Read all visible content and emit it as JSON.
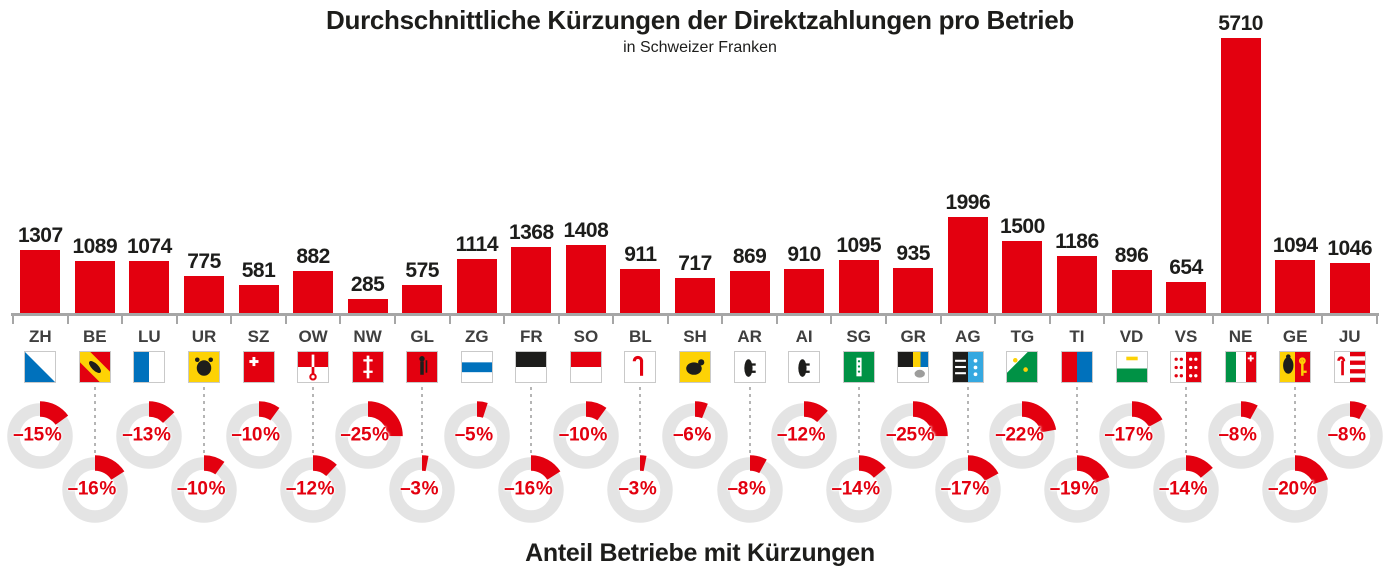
{
  "title": "Durchschnittliche Kürzungen der Direktzahlungen pro Betrieb",
  "subtitle": "in Schweizer Franken",
  "footer": "Anteil Betriebe mit Kürzungen",
  "colors": {
    "bar": "#e3000f",
    "donut_ring": "#e4e4e4",
    "donut_arc": "#e3000f",
    "pct_text": "#e3000f",
    "axis": "#a6a6a6",
    "value_text": "#1d1d1b",
    "canton_text": "#3f3f3f",
    "dash": "#b5b5b5"
  },
  "chart_data": {
    "type": "bar",
    "title": "Durchschnittliche Kürzungen der Direktzahlungen pro Betrieb",
    "subtitle": "in Schweizer Franken",
    "donut_caption": "Anteil Betriebe mit Kürzungen",
    "categories": [
      "ZH",
      "BE",
      "LU",
      "UR",
      "SZ",
      "OW",
      "NW",
      "GL",
      "ZG",
      "FR",
      "SO",
      "BL",
      "SH",
      "AR",
      "AI",
      "SG",
      "GR",
      "AG",
      "TG",
      "TI",
      "VD",
      "VS",
      "NE",
      "GE",
      "JU"
    ],
    "series": [
      {
        "name": "Durchschnittliche Kürzung pro Betrieb (CHF)",
        "type": "bar",
        "values": [
          1307,
          1089,
          1074,
          775,
          581,
          882,
          285,
          575,
          1114,
          1368,
          1408,
          911,
          717,
          869,
          910,
          1095,
          935,
          1996,
          1500,
          1186,
          896,
          654,
          5710,
          1094,
          1046
        ]
      },
      {
        "name": "Anteil Betriebe mit Kürzungen (%)",
        "type": "donut",
        "values": [
          -15,
          -16,
          -13,
          -10,
          -10,
          -12,
          -25,
          -3,
          -5,
          -16,
          -10,
          -3,
          -6,
          -8,
          -12,
          -14,
          -25,
          -17,
          -22,
          -19,
          -17,
          -14,
          -8,
          -20,
          -8
        ]
      }
    ],
    "ylim": [
      0,
      5710
    ],
    "value_labels": true,
    "grid": false,
    "legend": "none"
  },
  "cantons": [
    {
      "code": "ZH",
      "value": 1307,
      "pct": -15,
      "pct_label": "–15 %",
      "flag": {
        "pattern": "diagonal",
        "colors": [
          "#ffffff",
          "#0071bc"
        ]
      }
    },
    {
      "code": "BE",
      "value": 1089,
      "pct": -16,
      "pct_label": "–16 %",
      "flag": {
        "pattern": "bern",
        "colors": [
          "#e3000f",
          "#fdd205",
          "#1d1d1b"
        ]
      }
    },
    {
      "code": "LU",
      "value": 1074,
      "pct": -13,
      "pct_label": "–13 %",
      "flag": {
        "pattern": "vsplit",
        "colors": [
          "#0071bc",
          "#ffffff"
        ]
      }
    },
    {
      "code": "UR",
      "value": 775,
      "pct": -10,
      "pct_label": "–10 %",
      "flag": {
        "pattern": "solid",
        "colors": [
          "#fdd205"
        ],
        "emblem": "bull",
        "emblem_color": "#1d1d1b"
      }
    },
    {
      "code": "SZ",
      "value": 581,
      "pct": -10,
      "pct_label": "–10 %",
      "flag": {
        "pattern": "solid",
        "colors": [
          "#e3000f"
        ],
        "emblem": "cross_tl",
        "emblem_color": "#ffffff"
      }
    },
    {
      "code": "OW",
      "value": 882,
      "pct": -12,
      "pct_label": "–12 %",
      "flag": {
        "pattern": "obwalden",
        "colors": [
          "#e3000f",
          "#ffffff"
        ]
      }
    },
    {
      "code": "NW",
      "value": 285,
      "pct": -25,
      "pct_label": "–25 %",
      "flag": {
        "pattern": "solid",
        "colors": [
          "#e3000f"
        ],
        "emblem": "double_key",
        "emblem_color": "#ffffff"
      }
    },
    {
      "code": "GL",
      "value": 575,
      "pct": -3,
      "pct_label": "–3 %",
      "flag": {
        "pattern": "solid",
        "colors": [
          "#e3000f"
        ],
        "emblem": "figure",
        "emblem_color": "#1d1d1b"
      }
    },
    {
      "code": "ZG",
      "value": 1114,
      "pct": -5,
      "pct_label": "–5 %",
      "flag": {
        "pattern": "hstripes",
        "colors": [
          "#ffffff",
          "#0071bc"
        ]
      }
    },
    {
      "code": "FR",
      "value": 1368,
      "pct": -16,
      "pct_label": "–16 %",
      "flag": {
        "pattern": "hsplit",
        "colors": [
          "#1d1d1b",
          "#ffffff"
        ]
      }
    },
    {
      "code": "SO",
      "value": 1408,
      "pct": -10,
      "pct_label": "–10 %",
      "flag": {
        "pattern": "hsplit",
        "colors": [
          "#e3000f",
          "#ffffff"
        ]
      }
    },
    {
      "code": "BL",
      "value": 911,
      "pct": -3,
      "pct_label": "–3 %",
      "flag": {
        "pattern": "solid",
        "colors": [
          "#ffffff"
        ],
        "emblem": "crozier",
        "emblem_color": "#e3000f"
      }
    },
    {
      "code": "SH",
      "value": 717,
      "pct": -6,
      "pct_label": "–6 %",
      "flag": {
        "pattern": "solid",
        "colors": [
          "#fdd205"
        ],
        "emblem": "ram",
        "emblem_color": "#1d1d1b"
      }
    },
    {
      "code": "AR",
      "value": 869,
      "pct": -8,
      "pct_label": "–8 %",
      "flag": {
        "pattern": "solid",
        "colors": [
          "#ffffff"
        ],
        "emblem": "bear",
        "emblem_color": "#1d1d1b"
      }
    },
    {
      "code": "AI",
      "value": 910,
      "pct": -12,
      "pct_label": "–12 %",
      "flag": {
        "pattern": "solid",
        "colors": [
          "#ffffff"
        ],
        "emblem": "bear",
        "emblem_color": "#1d1d1b"
      }
    },
    {
      "code": "SG",
      "value": 1095,
      "pct": -14,
      "pct_label": "–14 %",
      "flag": {
        "pattern": "solid",
        "colors": [
          "#009245"
        ],
        "emblem": "fasces",
        "emblem_color": "#ffffff"
      }
    },
    {
      "code": "GR",
      "value": 935,
      "pct": -25,
      "pct_label": "–25 %",
      "flag": {
        "pattern": "quad_gr",
        "colors": [
          "#1d1d1b",
          "#ffffff",
          "#fdd205",
          "#0071bc",
          "#9d9d9c"
        ]
      }
    },
    {
      "code": "AG",
      "value": 1996,
      "pct": -17,
      "pct_label": "–17 %",
      "flag": {
        "pattern": "aargau",
        "colors": [
          "#1d1d1b",
          "#35a8e0",
          "#ffffff"
        ]
      }
    },
    {
      "code": "TG",
      "value": 1500,
      "pct": -22,
      "pct_label": "–22 %",
      "flag": {
        "pattern": "solid",
        "colors": [
          "#009245"
        ],
        "emblem": "diag_band",
        "emblem_color": "#ffffff"
      }
    },
    {
      "code": "TI",
      "value": 1186,
      "pct": -19,
      "pct_label": "–19 %",
      "flag": {
        "pattern": "vsplit",
        "colors": [
          "#e3000f",
          "#0071bc"
        ]
      }
    },
    {
      "code": "VD",
      "value": 896,
      "pct": -17,
      "pct_label": "–17 %",
      "flag": {
        "pattern": "hsplit",
        "colors": [
          "#ffffff",
          "#009245"
        ],
        "ratio": 0.55,
        "emblem": "vd_text",
        "emblem_color": "#fdd205"
      }
    },
    {
      "code": "VS",
      "value": 654,
      "pct": -14,
      "pct_label": "–14 %",
      "flag": {
        "pattern": "valais",
        "colors": [
          "#ffffff",
          "#e3000f"
        ]
      }
    },
    {
      "code": "NE",
      "value": 5710,
      "pct": -8,
      "pct_label": "–8 %",
      "flag": {
        "pattern": "vstripes",
        "colors": [
          "#009245",
          "#ffffff",
          "#e3000f"
        ],
        "emblem": "cross_ne",
        "emblem_color": "#ffffff"
      }
    },
    {
      "code": "GE",
      "value": 1094,
      "pct": -20,
      "pct_label": "–20 %",
      "flag": {
        "pattern": "geneve",
        "colors": [
          "#fdd205",
          "#e3000f",
          "#1d1d1b"
        ]
      }
    },
    {
      "code": "JU",
      "value": 1046,
      "pct": -8,
      "pct_label": "–8 %",
      "flag": {
        "pattern": "jura",
        "colors": [
          "#ffffff",
          "#e3000f"
        ]
      }
    }
  ]
}
